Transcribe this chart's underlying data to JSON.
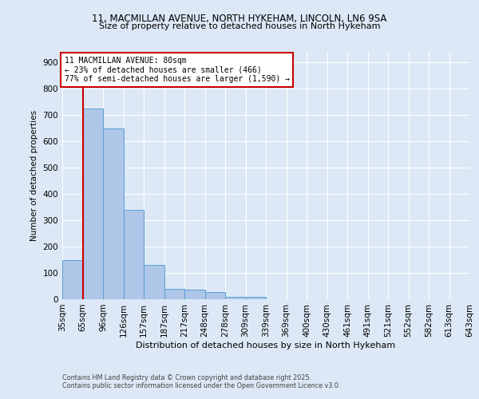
{
  "title1": "11, MACMILLAN AVENUE, NORTH HYKEHAM, LINCOLN, LN6 9SA",
  "title2": "Size of property relative to detached houses in North Hykeham",
  "xlabel": "Distribution of detached houses by size in North Hykeham",
  "ylabel": "Number of detached properties",
  "bar_values": [
    150,
    725,
    650,
    340,
    130,
    40,
    35,
    28,
    10,
    8,
    0,
    0,
    0,
    0,
    0,
    0,
    0,
    0,
    0,
    0
  ],
  "bin_labels": [
    "35sqm",
    "65sqm",
    "96sqm",
    "126sqm",
    "157sqm",
    "187sqm",
    "217sqm",
    "248sqm",
    "278sqm",
    "309sqm",
    "339sqm",
    "369sqm",
    "400sqm",
    "430sqm",
    "461sqm",
    "491sqm",
    "521sqm",
    "552sqm",
    "582sqm",
    "613sqm",
    "643sqm"
  ],
  "bar_color": "#aec6e8",
  "bar_edge_color": "#5a9fd4",
  "background_color": "#dce8f5",
  "grid_color": "#ffffff",
  "red_line_x": 1,
  "red_line_color": "#cc0000",
  "annotation_title": "11 MACMILLAN AVENUE: 80sqm",
  "annotation_line1": "← 23% of detached houses are smaller (466)",
  "annotation_line2": "77% of semi-detached houses are larger (1,590) →",
  "annotation_box_color": "#ffffff",
  "annotation_box_edge": "#cc0000",
  "ylim": [
    0,
    940
  ],
  "yticks": [
    0,
    100,
    200,
    300,
    400,
    500,
    600,
    700,
    800,
    900
  ],
  "footnote1": "Contains HM Land Registry data © Crown copyright and database right 2025.",
  "footnote2": "Contains public sector information licensed under the Open Government Licence v3.0."
}
